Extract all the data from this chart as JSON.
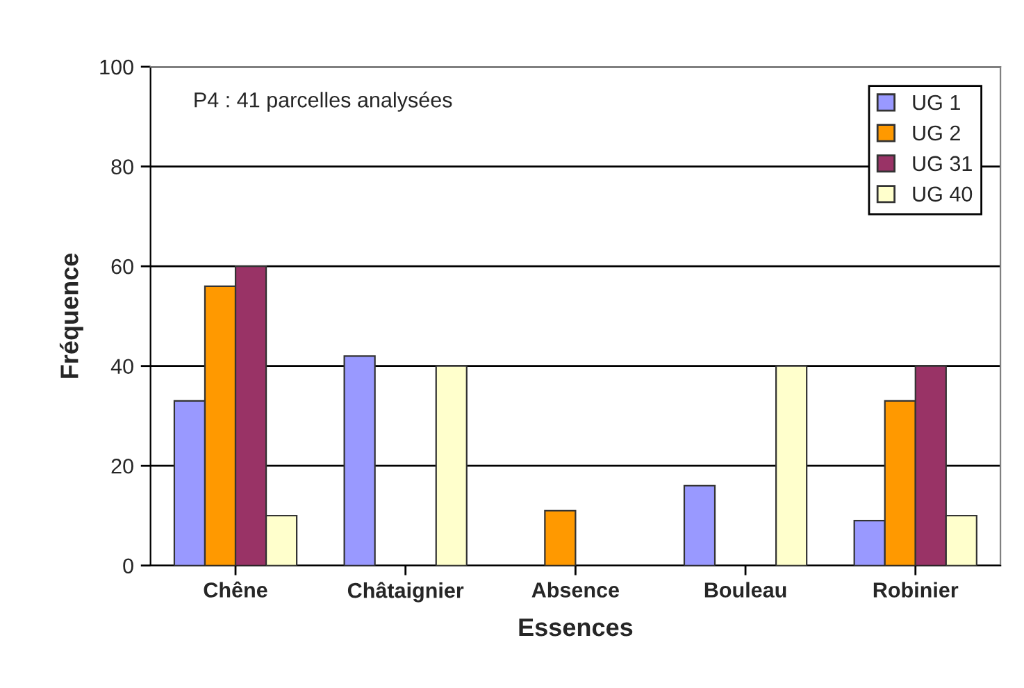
{
  "chart_data": {
    "type": "bar",
    "xlabel": "Essences",
    "ylabel": "Fréquence",
    "categories": [
      "Chêne",
      "Châtaignier",
      "Absence",
      "Bouleau",
      "Robinier"
    ],
    "series": [
      {
        "name": "UG 1",
        "color": "#9999ff",
        "values": [
          33,
          42,
          0,
          16,
          9
        ]
      },
      {
        "name": "UG 2",
        "color": "#ff9900",
        "values": [
          56,
          0,
          11,
          0,
          33
        ]
      },
      {
        "name": "UG 31",
        "color": "#993366",
        "values": [
          60,
          0,
          0,
          0,
          40
        ]
      },
      {
        "name": "UG 40",
        "color": "#ffffcc",
        "values": [
          10,
          40,
          0,
          40,
          10
        ]
      }
    ],
    "ylim": [
      0,
      100
    ],
    "yticks": [
      0,
      20,
      40,
      60,
      80,
      100
    ],
    "grid": "y",
    "legend": "top right",
    "annotations": [
      "P4 : 41 parcelles analysées"
    ]
  }
}
